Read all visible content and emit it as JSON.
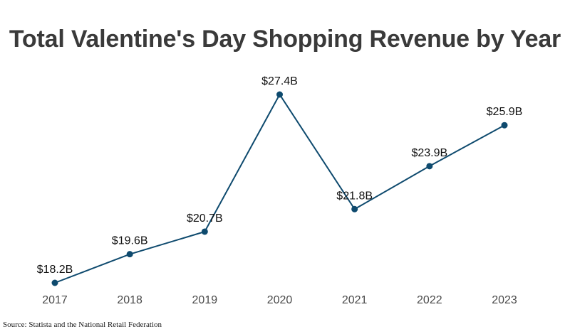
{
  "chart_data": {
    "type": "line",
    "title": "Total Valentine's Day Shopping Revenue by Year",
    "categories": [
      "2017",
      "2018",
      "2019",
      "2020",
      "2021",
      "2022",
      "2023"
    ],
    "values": [
      18.2,
      19.6,
      20.7,
      27.4,
      21.8,
      23.9,
      25.9
    ],
    "data_labels": [
      "$18.2B",
      "$19.6B",
      "$20.7B",
      "$27.4B",
      "$21.8B",
      "$23.9B",
      "$25.9B"
    ],
    "xlabel": "",
    "ylabel": "",
    "grid": false,
    "legend": "none",
    "line_color": "#0e4a6e",
    "marker_color": "#0e4a6e"
  },
  "source": "Source: Statista and the National Retail Federation"
}
